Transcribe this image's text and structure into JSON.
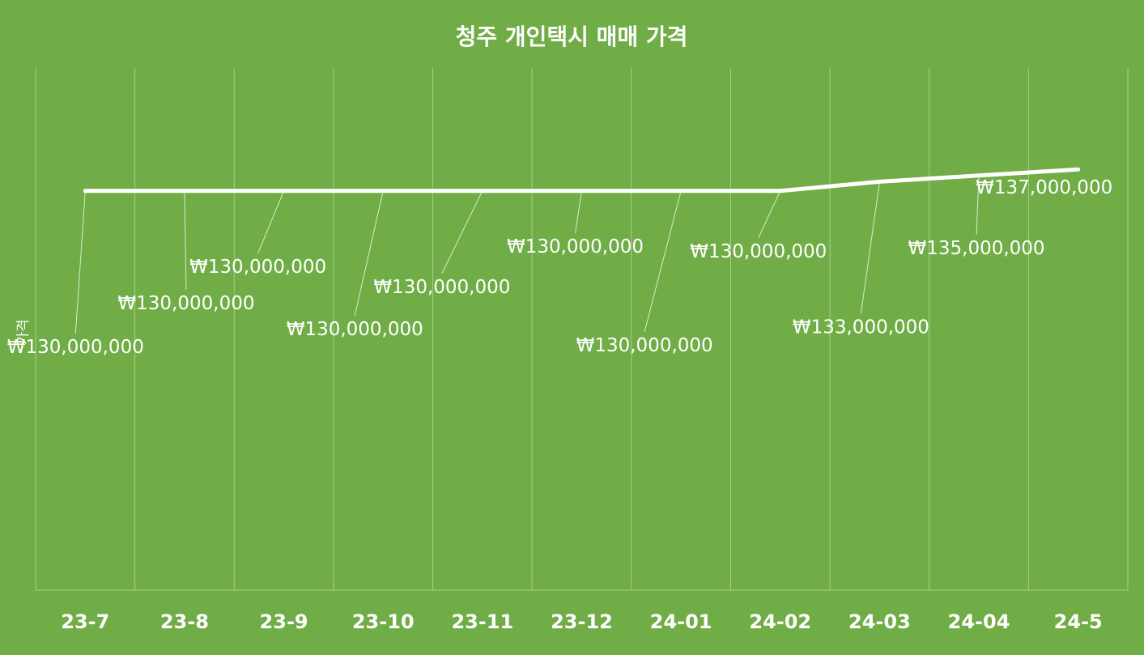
{
  "chart_data": {
    "type": "line",
    "title": "청주 개인택시 매매 가격",
    "ylabel": "가격",
    "xlabel": "",
    "categories": [
      "23-7",
      "23-8",
      "23-9",
      "23-10",
      "23-11",
      "23-12",
      "24-01",
      "24-02",
      "24-03",
      "24-04",
      "24-5"
    ],
    "series": [
      {
        "values": [
          130000000,
          130000000,
          130000000,
          130000000,
          130000000,
          130000000,
          130000000,
          130000000,
          133000000,
          135000000,
          137000000
        ]
      }
    ],
    "data_labels": [
      "₩130,000,000",
      "₩130,000,000",
      "₩130,000,000",
      "₩130,000,000",
      "₩130,000,000",
      "₩130,000,000",
      "₩130,000,000",
      "₩130,000,000",
      "₩133,000,000",
      "₩135,000,000",
      "₩137,000,000"
    ],
    "ylim": [
      0,
      170000000
    ],
    "grid": "vertical",
    "legend": "none",
    "colors": {
      "background": "#70AD47",
      "line": "#FFFFFF",
      "grid": "#A8CF8C",
      "text": "#FFFFFF"
    }
  }
}
